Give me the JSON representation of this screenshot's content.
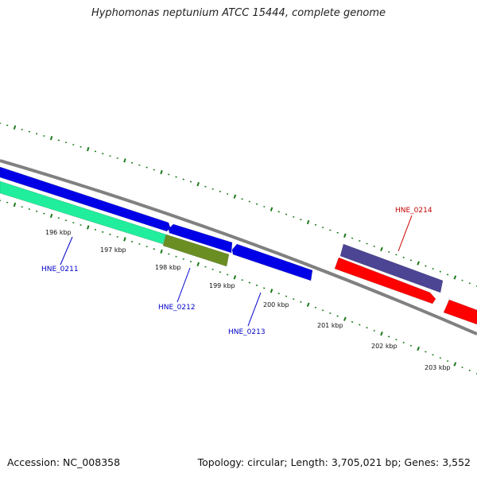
{
  "title": "Hyphomonas neptunium ATCC 15444, complete genome",
  "footer": {
    "accession": "Accession: NC_008358",
    "summary": "Topology: circular; Length: 3,705,021 bp; Genes: 3,552"
  },
  "colors": {
    "backbone": "#808080",
    "tick": "#1a7a1a",
    "gene_forward_blue": "#0000e6",
    "gene_teal": "#20ee9c",
    "gene_olive": "#6b8e23",
    "gene_slate": "#4b4594",
    "gene_red": "#ff0000",
    "label_blue": "#0000c8",
    "label_red": "#c80000"
  },
  "scale_labels": [
    "196 kbp",
    "197 kbp",
    "198 kbp",
    "199 kbp",
    "200 kbp",
    "201 kbp",
    "202 kbp",
    "203 kbp"
  ],
  "genes": [
    {
      "name": "HNE_0211",
      "color_key": "label_blue"
    },
    {
      "name": "HNE_0212",
      "color_key": "label_blue"
    },
    {
      "name": "HNE_0213",
      "color_key": "label_blue"
    },
    {
      "name": "HNE_0214",
      "color_key": "label_red"
    }
  ]
}
